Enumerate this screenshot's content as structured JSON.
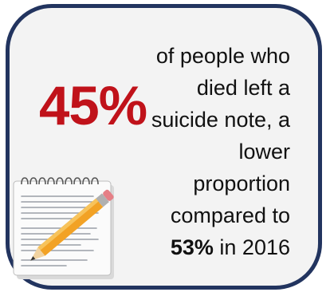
{
  "stat": {
    "value": "45%",
    "color": "#c0121a"
  },
  "caption": {
    "line1": "of people who",
    "line2": "died left a",
    "line3": "suicide note, a",
    "line4": "lower",
    "line5": "proportion",
    "line6": "compared to",
    "highlight": "53%",
    "line7_tail": " in 2016"
  },
  "illustration": {
    "icon": "notepad-pencil-icon"
  },
  "colors": {
    "border": "#22345f",
    "background": "#f3f3f3"
  }
}
